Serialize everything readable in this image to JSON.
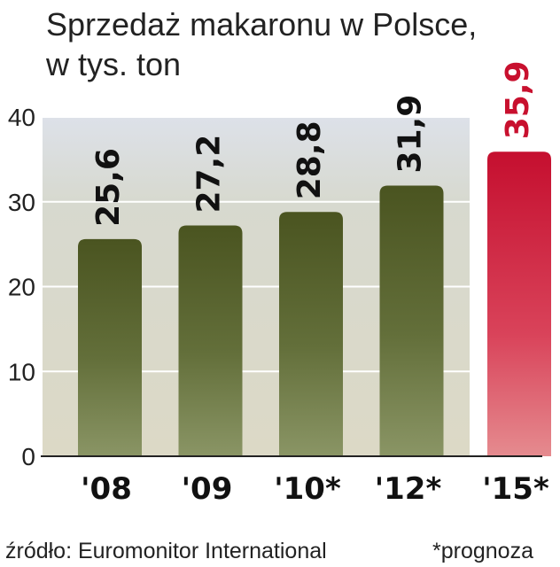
{
  "chart_data": {
    "type": "bar",
    "title": "Sprzedaż makaronu w Polsce,",
    "subtitle": "w tys. ton",
    "categories": [
      "'08",
      "'09",
      "'10*",
      "'12*",
      "'15*"
    ],
    "values": [
      25.6,
      27.2,
      28.8,
      31.9,
      35.9
    ],
    "value_labels": [
      "25,6",
      "27,2",
      "28,8",
      "31,9",
      "35,9"
    ],
    "highlighted": [
      false,
      false,
      false,
      false,
      true
    ],
    "ylim": [
      0,
      40
    ],
    "yticks": [
      0,
      10,
      20,
      30,
      40
    ],
    "grid": true,
    "colors": {
      "bar": "#4b5621",
      "bar_highlight": "#c8102e",
      "value_label": "#111111",
      "value_label_highlight": "#c8102e"
    }
  },
  "footer": {
    "source": "źródło: Euromonitor International",
    "note": "*prognoza"
  }
}
